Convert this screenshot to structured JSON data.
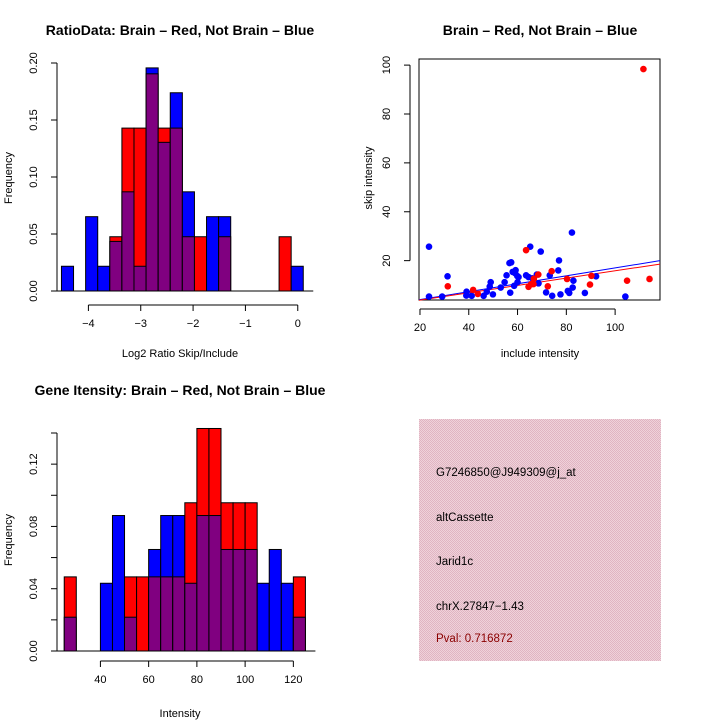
{
  "chart_data": [
    {
      "type": "bar",
      "subtype": "overlaid-histogram",
      "title": "RatioData: Brain – Red, Not Brain – Blue",
      "xlabel": "Log2 Ratio Skip/Include",
      "ylabel": "Frequency",
      "xlim": [
        -4.6,
        0.1
      ],
      "ylim": [
        0,
        0.2
      ],
      "xticks": [
        -4,
        -3,
        -2,
        -1,
        0
      ],
      "xtick_labels": [
        "−4",
        "−3",
        "−2",
        "−1",
        "0"
      ],
      "yticks": [
        0,
        0.05,
        0.1,
        0.15,
        0.2
      ],
      "ytick_labels": [
        "0.00",
        "0.05",
        "0.10",
        "0.15",
        "0.20"
      ],
      "bin_start": -4.515,
      "bin_width": 0.231,
      "series": [
        {
          "name": "Not Brain",
          "color": "#0000ff",
          "values": [
            0.0217,
            0,
            0.0652,
            0.0217,
            0.0435,
            0.087,
            0.0217,
            0.1957,
            0.1304,
            0.1739,
            0.087,
            0,
            0.0652,
            0.0652,
            0,
            0,
            0,
            0,
            0,
            0.0217
          ]
        },
        {
          "name": "Brain",
          "color": "#ff0000",
          "values": [
            0,
            0,
            0,
            0,
            0.0476,
            0.1429,
            0.1429,
            0.1905,
            0.1429,
            0.1429,
            0.0476,
            0.0476,
            0,
            0.0476,
            0,
            0,
            0,
            0,
            0.0476,
            0
          ]
        }
      ],
      "overlap_color": "#800080"
    },
    {
      "type": "scatter",
      "title": "Brain – Red, Not Brain – Blue",
      "xlabel": "include intensity",
      "ylabel": "skip intensity",
      "xlim": [
        19.6,
        118.4
      ],
      "ylim": [
        3.9,
        102.5
      ],
      "xticks": [
        20,
        40,
        60,
        80,
        100
      ],
      "xtick_labels": [
        "20",
        "40",
        "60",
        "80",
        "100"
      ],
      "yticks": [
        20,
        40,
        60,
        80,
        100
      ],
      "ytick_labels": [
        "20",
        "40",
        "60",
        "80",
        "100"
      ],
      "series": [
        {
          "name": "Not Brain",
          "color": "#0000ff",
          "points": [
            [
              23.7,
              25.7
            ],
            [
              23.7,
              5.3
            ],
            [
              29.1,
              5.3
            ],
            [
              31.3,
              13.6
            ],
            [
              39.1,
              7.3
            ],
            [
              39.0,
              5.7
            ],
            [
              41.2,
              5.6
            ],
            [
              46.1,
              5.6
            ],
            [
              47.4,
              7.3
            ],
            [
              49.0,
              11.2
            ],
            [
              49.9,
              6.2
            ],
            [
              48.6,
              9.4
            ],
            [
              53.1,
              9.0
            ],
            [
              54.7,
              11.2
            ],
            [
              55.5,
              14.0
            ],
            [
              56.7,
              19.0
            ],
            [
              57.4,
              19.3
            ],
            [
              57.0,
              6.9
            ],
            [
              58.0,
              15.4
            ],
            [
              59.0,
              14.9
            ],
            [
              59.2,
              16.1
            ],
            [
              60.0,
              11.2
            ],
            [
              59.9,
              13.7
            ],
            [
              58.6,
              9.7
            ],
            [
              60.4,
              13.3
            ],
            [
              63.5,
              14.0
            ],
            [
              65.2,
              25.7
            ],
            [
              64.5,
              13.3
            ],
            [
              66.1,
              12.8
            ],
            [
              67.9,
              14.3
            ],
            [
              68.6,
              10.7
            ],
            [
              69.5,
              23.7
            ],
            [
              71.7,
              7.0
            ],
            [
              73.2,
              14.0
            ],
            [
              74.2,
              5.6
            ],
            [
              76.7,
              16.0
            ],
            [
              77.0,
              20.1
            ],
            [
              77.6,
              6.2
            ],
            [
              80.6,
              7.6
            ],
            [
              81.2,
              6.8
            ],
            [
              82.3,
              31.5
            ],
            [
              82.6,
              9.0
            ],
            [
              82.9,
              11.8
            ],
            [
              87.6,
              6.8
            ],
            [
              92.2,
              13.6
            ],
            [
              104.2,
              5.3
            ]
          ]
        },
        {
          "name": "Brain",
          "color": "#ff0000",
          "points": [
            [
              31.4,
              9.5
            ],
            [
              41.8,
              8.0
            ],
            [
              43.7,
              6.4
            ],
            [
              63.5,
              24.3
            ],
            [
              64.5,
              9.3
            ],
            [
              65.6,
              10.4
            ],
            [
              66.5,
              10.4
            ],
            [
              66.7,
              12.6
            ],
            [
              68.5,
              14.3
            ],
            [
              72.4,
              9.5
            ],
            [
              74.0,
              15.7
            ],
            [
              80.3,
              12.5
            ],
            [
              89.7,
              10.2
            ],
            [
              90.3,
              13.8
            ],
            [
              104.9,
              11.8
            ],
            [
              114.1,
              12.5
            ],
            [
              111.6,
              98.4
            ]
          ]
        }
      ],
      "fit_lines": [
        {
          "name": "Not Brain fit",
          "color": "#0000ff",
          "from": [
            19.6,
            4.0
          ],
          "to": [
            118.4,
            20.0
          ]
        },
        {
          "name": "Brain fit",
          "color": "#ff0000",
          "from": [
            19.6,
            3.8
          ],
          "to": [
            118.4,
            18.6
          ]
        }
      ]
    },
    {
      "type": "bar",
      "subtype": "overlaid-histogram",
      "title": "Gene Itensity: Brain – Red, Not Brain – Blue",
      "xlabel": "Intensity",
      "ylabel": "Frequency",
      "xlim": [
        22,
        124
      ],
      "ylim": [
        0,
        0.14
      ],
      "xticks": [
        40,
        60,
        80,
        100,
        120
      ],
      "xtick_labels": [
        "40",
        "60",
        "80",
        "100",
        "120"
      ],
      "yticks": [
        0,
        0.02,
        0.04,
        0.06,
        0.08,
        0.1,
        0.12,
        0.14
      ],
      "ytick_labels": [
        "0.00",
        "",
        "0.04",
        "",
        "0.08",
        "",
        "0.12",
        ""
      ],
      "bin_start": 25,
      "bin_width": 5,
      "series": [
        {
          "name": "Not Brain",
          "color": "#0000ff",
          "values": [
            0.0217,
            0,
            0,
            0.0435,
            0.087,
            0.0217,
            0,
            0.0652,
            0.087,
            0.087,
            0.0435,
            0.087,
            0.087,
            0.0652,
            0.0652,
            0.0652,
            0.0435,
            0.0652,
            0.0435,
            0.0217
          ]
        },
        {
          "name": "Brain",
          "color": "#ff0000",
          "values": [
            0.0476,
            0,
            0,
            0,
            0,
            0.0476,
            0.0476,
            0.0476,
            0.0476,
            0.0476,
            0.0952,
            0.1429,
            0.1429,
            0.0952,
            0.0952,
            0.0952,
            0,
            0,
            0,
            0.0476
          ]
        }
      ],
      "overlap_color": "#800080"
    }
  ],
  "info_panel": {
    "background": "#e8c3cc",
    "lines": [
      "G7246850@J949309@j_at",
      "altCassette",
      "Jarid1c",
      "chrX.27847−1.43"
    ],
    "pval": "Pval: 0.716872",
    "pval_color": "#8b0000"
  }
}
